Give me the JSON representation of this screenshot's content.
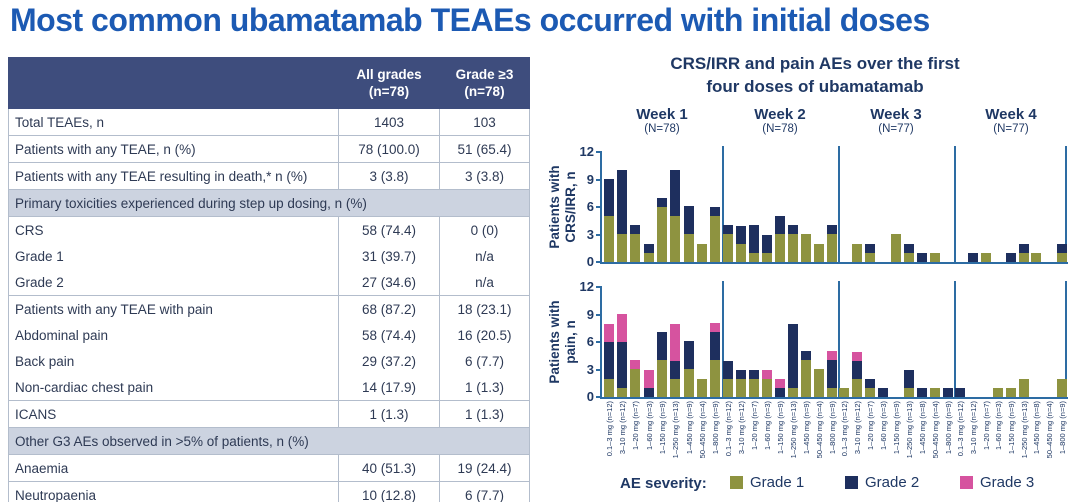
{
  "title": "Most common ubamatamab TEAEs occurred with initial doses",
  "colors": {
    "title_blue": "#1c5ab3",
    "navy_text": "#1f3864",
    "table_header_bg": "#3e4d7d",
    "section_row_bg": "#ccd3e0",
    "axis": "#2d6ca3",
    "grade1": "#8e9340",
    "grade2": "#1e2f5e",
    "grade3": "#d6539f"
  },
  "table": {
    "columns": {
      "all": {
        "line1": "All grades",
        "line2": "(n=78)"
      },
      "grade3": {
        "line1": "Grade ≥3",
        "line2": "(n=78)"
      }
    },
    "rows": [
      {
        "type": "data",
        "label": "Total TEAEs, n",
        "all": "1403",
        "g3": "103"
      },
      {
        "type": "data",
        "label": "Patients with any TEAE, n (%)",
        "all": "78 (100.0)",
        "g3": "51 (65.4)"
      },
      {
        "type": "data",
        "label": "Patients with any TEAE resulting in death,* n (%)",
        "all": "3 (3.8)",
        "g3": "3 (3.8)"
      },
      {
        "type": "section",
        "label": "Primary toxicities experienced during step up dosing, n (%)"
      },
      {
        "type": "data",
        "label": "CRS",
        "all": "58 (74.4)",
        "g3": "0 (0)"
      },
      {
        "type": "indent",
        "label": "Grade 1",
        "all": "31 (39.7)",
        "g3": "n/a"
      },
      {
        "type": "indent",
        "label": "Grade 2",
        "all": "27 (34.6)",
        "g3": "n/a"
      },
      {
        "type": "data",
        "label": "Patients with any TEAE with pain",
        "all": "68 (87.2)",
        "g3": "18 (23.1)"
      },
      {
        "type": "indent",
        "label": "Abdominal pain",
        "all": "58 (74.4)",
        "g3": "16 (20.5)"
      },
      {
        "type": "indent",
        "label": "Back pain",
        "all": "29 (37.2)",
        "g3": "6 (7.7)"
      },
      {
        "type": "indent",
        "label": "Non-cardiac chest pain",
        "all": "14 (17.9)",
        "g3": "1 (1.3)"
      },
      {
        "type": "data",
        "label": "ICANS",
        "all": "1 (1.3)",
        "g3": "1 (1.3)"
      },
      {
        "type": "section",
        "label": "Other G3 AEs observed in >5% of patients, n (%)"
      },
      {
        "type": "data",
        "label": "Anaemia",
        "all": "40 (51.3)",
        "g3": "19 (24.4)"
      },
      {
        "type": "data",
        "label": "Neutropaenia",
        "all": "10 (12.8)",
        "g3": "6 (7.7)"
      }
    ]
  },
  "chart_data": {
    "type": "bar",
    "stacked": true,
    "grid": false,
    "title": "CRS/IRR and pain AEs over the first four doses of ubamatamab",
    "title_lines": [
      "CRS/IRR and pain AEs over the first",
      "four doses of ubamatamab"
    ],
    "ylim": [
      0,
      12
    ],
    "yticks": [
      0,
      3,
      6,
      9,
      12
    ],
    "stack_order": [
      "Grade 1",
      "Grade 2",
      "Grade 3"
    ],
    "weeks": [
      {
        "label": "Week 1",
        "n_label": "(N=78)"
      },
      {
        "label": "Week 2",
        "n_label": "(N=78)"
      },
      {
        "label": "Week 3",
        "n_label": "(N=77)"
      },
      {
        "label": "Week 4",
        "n_label": "(N=77)"
      }
    ],
    "dose_categories": {
      "weeks_1_2": [
        "0.1–3 mg (n=12)",
        "3–10 mg (n=12)",
        "1–20 mg (n=7)",
        "1–60 mg (n=3)",
        "1–150 mg (n=9)",
        "1–250 mg (n=13)",
        "1–450 mg (n=9)",
        "50–450 mg (n=4)",
        "1–800 mg (n=9)"
      ],
      "weeks_3_4": [
        "0.1–3 mg (n=12)",
        "3–10 mg (n=12)",
        "1–20 mg (n=7)",
        "1–60 mg (n=3)",
        "1–150 mg (n=9)",
        "1–250 mg (n=13)",
        "1–450 mg (n=8)",
        "50–450 mg (n=4)",
        "1–800 mg (n=9)"
      ]
    },
    "series_legend": {
      "label": "AE severity:",
      "entries": [
        {
          "name": "Grade 1",
          "color": "#8e9340"
        },
        {
          "name": "Grade 2",
          "color": "#1e2f5e"
        },
        {
          "name": "Grade 3",
          "color": "#d6539f"
        }
      ]
    },
    "panels": [
      {
        "ylabel": "Patients with CRS/IRR, n",
        "ylabel_lines": [
          "Patients with",
          "CRS/IRR, n"
        ],
        "values_by_week": [
          [
            [
              5,
              4,
              0
            ],
            [
              3,
              7,
              0
            ],
            [
              3,
              1,
              0
            ],
            [
              1,
              1,
              0
            ],
            [
              6,
              1,
              0
            ],
            [
              5,
              5,
              0
            ],
            [
              3,
              3,
              0
            ],
            [
              2,
              0,
              0
            ],
            [
              5,
              1,
              0
            ]
          ],
          [
            [
              3,
              1,
              0
            ],
            [
              2,
              2,
              0
            ],
            [
              1,
              3,
              0
            ],
            [
              1,
              2,
              0
            ],
            [
              3,
              2,
              0
            ],
            [
              3,
              1,
              0
            ],
            [
              3,
              0,
              0
            ],
            [
              2,
              0,
              0
            ],
            [
              3,
              1,
              0
            ]
          ],
          [
            [
              0,
              0,
              0
            ],
            [
              2,
              0,
              0
            ],
            [
              1,
              1,
              0
            ],
            [
              0,
              0,
              0
            ],
            [
              3,
              0,
              0
            ],
            [
              1,
              1,
              0
            ],
            [
              0,
              1,
              0
            ],
            [
              1,
              0,
              0
            ],
            [
              0,
              0,
              0
            ]
          ],
          [
            [
              0,
              0,
              0
            ],
            [
              0,
              1,
              0
            ],
            [
              1,
              0,
              0
            ],
            [
              0,
              0,
              0
            ],
            [
              0,
              1,
              0
            ],
            [
              1,
              1,
              0
            ],
            [
              1,
              0,
              0
            ],
            [
              0,
              0,
              0
            ],
            [
              1,
              1,
              0
            ]
          ]
        ]
      },
      {
        "ylabel": "Patients with pain, n",
        "ylabel_lines": [
          "Patients with",
          "pain, n"
        ],
        "values_by_week": [
          [
            [
              2,
              4,
              2
            ],
            [
              1,
              5,
              3
            ],
            [
              3,
              0,
              1
            ],
            [
              0,
              1,
              2
            ],
            [
              4,
              3,
              0
            ],
            [
              2,
              2,
              4
            ],
            [
              3,
              3,
              0
            ],
            [
              2,
              0,
              0
            ],
            [
              4,
              3,
              1
            ]
          ],
          [
            [
              2,
              2,
              0
            ],
            [
              2,
              1,
              0
            ],
            [
              2,
              1,
              0
            ],
            [
              2,
              0,
              1
            ],
            [
              0,
              1,
              1
            ],
            [
              1,
              7,
              0
            ],
            [
              4,
              1,
              0
            ],
            [
              3,
              0,
              0
            ],
            [
              1,
              3,
              1
            ]
          ],
          [
            [
              1,
              0,
              0
            ],
            [
              2,
              2,
              1
            ],
            [
              1,
              1,
              0
            ],
            [
              0,
              1,
              0
            ],
            [
              0,
              0,
              0
            ],
            [
              1,
              2,
              0
            ],
            [
              0,
              1,
              0
            ],
            [
              1,
              0,
              0
            ],
            [
              0,
              1,
              0
            ]
          ],
          [
            [
              0,
              1,
              0
            ],
            [
              0,
              0,
              0
            ],
            [
              0,
              0,
              0
            ],
            [
              1,
              0,
              0
            ],
            [
              1,
              0,
              0
            ],
            [
              2,
              0,
              0
            ],
            [
              0,
              0,
              0
            ],
            [
              0,
              0,
              0
            ],
            [
              2,
              0,
              0
            ]
          ]
        ]
      }
    ]
  }
}
